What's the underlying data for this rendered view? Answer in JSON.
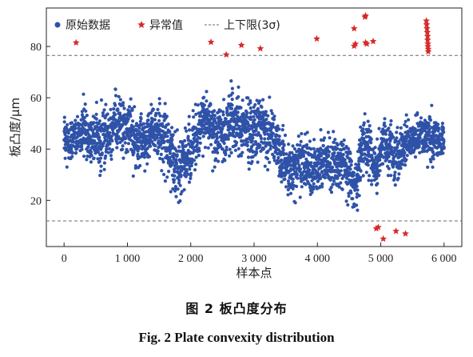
{
  "chart_data": {
    "type": "scatter",
    "xlabel": "样本点",
    "ylabel": "板凸度/μm",
    "xlim": [
      -280,
      6280
    ],
    "ylim": [
      2,
      95
    ],
    "xticks": [
      0,
      1000,
      2000,
      3000,
      4000,
      5000,
      6000
    ],
    "xtick_labels": [
      "0",
      "1 000",
      "2 000",
      "3 000",
      "4 000",
      "5 000",
      "6 000"
    ],
    "yticks": [
      20,
      40,
      60,
      80
    ],
    "ytick_labels": [
      "20",
      "40",
      "60",
      "80"
    ],
    "legend_position": "top",
    "legend": {
      "raw": "原始数据",
      "outlier": "异常值",
      "limits": "上下限(3σ)"
    },
    "limits": {
      "upper": 76.5,
      "lower": 12.0
    },
    "raw_profile": [
      [
        0,
        46,
        5
      ],
      [
        300,
        44,
        6
      ],
      [
        600,
        44,
        8
      ],
      [
        800,
        49,
        7
      ],
      [
        1000,
        47,
        7
      ],
      [
        1200,
        44,
        7
      ],
      [
        1400,
        48,
        6
      ],
      [
        1600,
        42,
        8
      ],
      [
        1750,
        36,
        8
      ],
      [
        1850,
        33,
        8
      ],
      [
        2050,
        44,
        7
      ],
      [
        2300,
        50,
        6
      ],
      [
        2500,
        45,
        8
      ],
      [
        2700,
        48,
        7
      ],
      [
        2900,
        48,
        8
      ],
      [
        3100,
        50,
        8
      ],
      [
        3300,
        45,
        7
      ],
      [
        3450,
        36,
        7
      ],
      [
        3550,
        30,
        6
      ],
      [
        3700,
        38,
        8
      ],
      [
        3850,
        32,
        7
      ],
      [
        4000,
        30,
        6
      ],
      [
        4200,
        36,
        7
      ],
      [
        4400,
        35,
        7
      ],
      [
        4600,
        30,
        6
      ],
      [
        4700,
        41,
        7
      ],
      [
        4800,
        43,
        7
      ],
      [
        4950,
        30,
        6
      ],
      [
        5050,
        42,
        6
      ],
      [
        5200,
        38,
        7
      ],
      [
        5400,
        43,
        5
      ],
      [
        5600,
        45,
        5
      ],
      [
        5800,
        42,
        6
      ],
      [
        6000,
        46,
        5
      ]
    ],
    "outliers": [
      [
        190,
        81.5
      ],
      [
        2320,
        81.7
      ],
      [
        2560,
        76.8
      ],
      [
        2800,
        80.5
      ],
      [
        3100,
        79.2
      ],
      [
        3990,
        83.0
      ],
      [
        4580,
        87.0
      ],
      [
        4580,
        80.2
      ],
      [
        4600,
        81.0
      ],
      [
        4750,
        91.5
      ],
      [
        4760,
        92.0
      ],
      [
        4760,
        81.5
      ],
      [
        4780,
        81.0
      ],
      [
        4880,
        82.0
      ],
      [
        4930,
        9.0
      ],
      [
        4960,
        9.5
      ],
      [
        5040,
        5.0
      ],
      [
        5240,
        8.0
      ],
      [
        5390,
        7.0
      ],
      [
        5720,
        90.0
      ],
      [
        5725,
        88.5
      ],
      [
        5730,
        87.0
      ],
      [
        5735,
        85.5
      ],
      [
        5740,
        84.0
      ],
      [
        5740,
        82.5
      ],
      [
        5745,
        81.0
      ],
      [
        5745,
        80.0
      ],
      [
        5750,
        79.0
      ],
      [
        5750,
        78.0
      ]
    ]
  },
  "caption": {
    "cn": "图 2   板凸度分布",
    "en": "Fig. 2   Plate convexity distribution"
  },
  "colors": {
    "raw": "#2f52a8",
    "outlier": "#d62a2a",
    "limit_line": "#6b6b6b",
    "axis": "#222222"
  }
}
